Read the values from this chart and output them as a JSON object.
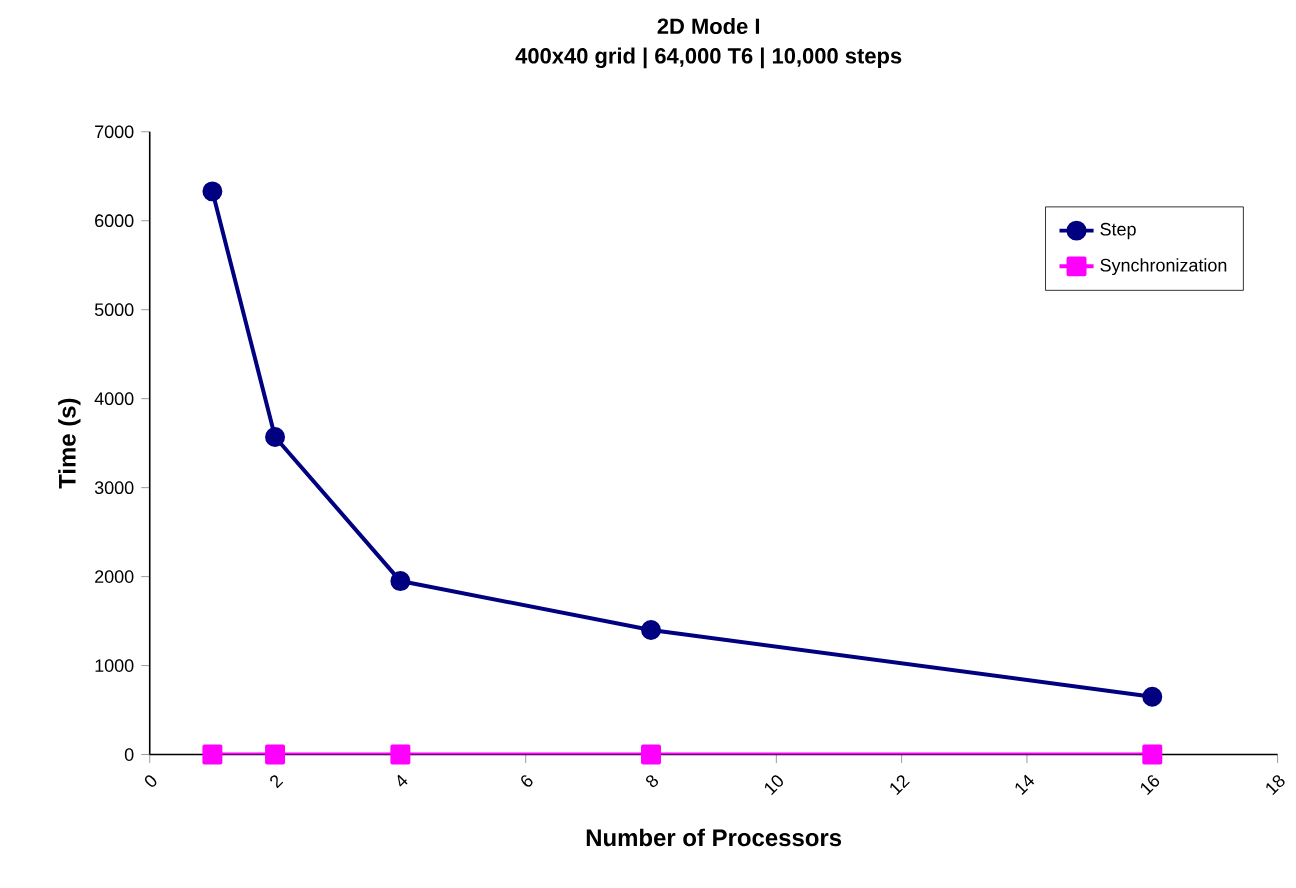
{
  "chart_data": {
    "type": "line",
    "title": "2D Mode I",
    "subtitle": "400x40 grid | 64,000 T6 | 10,000 steps",
    "xlabel": "Number of Processors",
    "ylabel": "Time (s)",
    "x": [
      1,
      2,
      4,
      8,
      16
    ],
    "series": [
      {
        "name": "Step",
        "color": "#000080",
        "marker": "circle",
        "values": [
          6330,
          3570,
          1950,
          1400,
          650
        ]
      },
      {
        "name": "Synchronization",
        "color": "#ff00ff",
        "marker": "square",
        "values": [
          0,
          0,
          0,
          0,
          0
        ]
      }
    ],
    "xlim": [
      0,
      18
    ],
    "xticks": [
      0,
      2,
      4,
      6,
      8,
      10,
      12,
      14,
      16,
      18
    ],
    "ylim": [
      0,
      7000
    ],
    "yticks": [
      0,
      1000,
      2000,
      3000,
      4000,
      5000,
      6000,
      7000
    ],
    "grid": false,
    "legend": "top right",
    "line_style": "solid"
  }
}
